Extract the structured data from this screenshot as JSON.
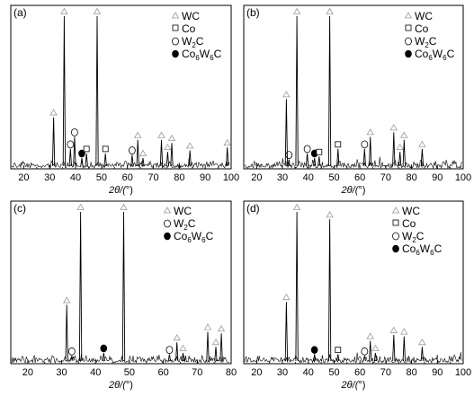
{
  "legend_symbols": {
    "WC": "triangle-icon",
    "Co": "square-icon",
    "W2C": "open-circle-icon",
    "Co6W6C": "filled-circle-icon"
  },
  "chart_data": [
    {
      "type": "line",
      "panel_label": "(a)",
      "xlabel": {
        "main": "2θ/(",
        "unit": "°",
        "end": ")"
      },
      "xticks": [
        20,
        30,
        40,
        50,
        60,
        70,
        80,
        90,
        100
      ],
      "xlim": [
        15,
        100
      ],
      "grid": false,
      "legend": [
        {
          "label": "WC",
          "symbol": "triangle"
        },
        {
          "label": "Co",
          "symbol": "square"
        },
        {
          "label": "W",
          "sub": "2",
          "label_end": "C",
          "symbol": "open-circle"
        },
        {
          "label": "Co",
          "sub": "6",
          "label_mid": "W",
          "sub2": "6",
          "label_end": "C",
          "symbol": "filled-circle"
        }
      ],
      "legend_position": "top-right",
      "peaks": [
        {
          "x": 31.5,
          "h": 0.33,
          "phase": "WC"
        },
        {
          "x": 35.6,
          "h": 1.0,
          "phase": "WC"
        },
        {
          "x": 38.0,
          "h": 0.12,
          "phase": "W2C"
        },
        {
          "x": 39.6,
          "h": 0.2,
          "phase": "W2C"
        },
        {
          "x": 42.4,
          "h": 0.06,
          "phase": "Co6W6C"
        },
        {
          "x": 44.2,
          "h": 0.09,
          "phase": "Co"
        },
        {
          "x": 48.3,
          "h": 1.0,
          "phase": "WC"
        },
        {
          "x": 51.5,
          "h": 0.09,
          "phase": "Co"
        },
        {
          "x": 61.8,
          "h": 0.08,
          "phase": "W2C"
        },
        {
          "x": 64.0,
          "h": 0.18,
          "phase": "WC"
        },
        {
          "x": 66.0,
          "h": 0.06,
          "phase": "WC"
        },
        {
          "x": 73.1,
          "h": 0.18,
          "phase": "WC"
        },
        {
          "x": 75.5,
          "h": 0.1,
          "phase": "WC"
        },
        {
          "x": 77.1,
          "h": 0.16,
          "phase": "WC"
        },
        {
          "x": 84.1,
          "h": 0.11,
          "phase": "WC"
        },
        {
          "x": 98.5,
          "h": 0.13,
          "phase": "WC"
        }
      ]
    },
    {
      "type": "line",
      "panel_label": "(b)",
      "xlabel": {
        "main": "2θ/(",
        "unit": "°",
        "end": ")"
      },
      "xticks": [
        20,
        30,
        40,
        50,
        60,
        70,
        80,
        90,
        100
      ],
      "xlim": [
        15,
        100
      ],
      "grid": false,
      "legend": [
        {
          "label": "WC",
          "symbol": "triangle"
        },
        {
          "label": "Co",
          "symbol": "square"
        },
        {
          "label": "W",
          "sub": "2",
          "label_end": "C",
          "symbol": "open-circle"
        },
        {
          "label": "Co",
          "sub": "6",
          "label_mid": "W",
          "sub2": "6",
          "label_end": "C",
          "symbol": "filled-circle"
        }
      ],
      "legend_position": "top-right",
      "peaks": [
        {
          "x": 31.5,
          "h": 0.45,
          "phase": "WC"
        },
        {
          "x": 32.5,
          "h": 0.05,
          "phase": "W2C"
        },
        {
          "x": 35.6,
          "h": 1.0,
          "phase": "WC"
        },
        {
          "x": 39.6,
          "h": 0.09,
          "phase": "W2C"
        },
        {
          "x": 42.4,
          "h": 0.06,
          "phase": "Co6W6C"
        },
        {
          "x": 44.2,
          "h": 0.07,
          "phase": "Co"
        },
        {
          "x": 48.3,
          "h": 1.0,
          "phase": "WC"
        },
        {
          "x": 51.5,
          "h": 0.12,
          "phase": "Co"
        },
        {
          "x": 61.8,
          "h": 0.12,
          "phase": "W2C"
        },
        {
          "x": 64.0,
          "h": 0.2,
          "phase": "WC"
        },
        {
          "x": 73.1,
          "h": 0.23,
          "phase": "WC"
        },
        {
          "x": 75.5,
          "h": 0.1,
          "phase": "WC"
        },
        {
          "x": 77.1,
          "h": 0.18,
          "phase": "WC"
        },
        {
          "x": 84.1,
          "h": 0.12,
          "phase": "WC"
        }
      ]
    },
    {
      "type": "line",
      "panel_label": "(c)",
      "xlabel": {
        "main": "2θ/(",
        "unit": "°",
        "end": ")"
      },
      "xticks": [
        20,
        30,
        40,
        50,
        60,
        70,
        80
      ],
      "xlim": [
        15,
        80
      ],
      "grid": false,
      "legend": [
        {
          "label": "WC",
          "symbol": "triangle"
        },
        {
          "label": "W",
          "sub": "2",
          "label_end": "C",
          "symbol": "open-circle"
        },
        {
          "label": "Co",
          "sub": "6",
          "label_mid": "W",
          "sub2": "6",
          "label_end": "C",
          "symbol": "filled-circle"
        }
      ],
      "legend_position": "top-right",
      "peaks": [
        {
          "x": 31.5,
          "h": 0.38,
          "phase": "WC"
        },
        {
          "x": 33.0,
          "h": 0.04,
          "phase": "W2C"
        },
        {
          "x": 35.6,
          "h": 1.0,
          "phase": "WC"
        },
        {
          "x": 42.4,
          "h": 0.06,
          "phase": "Co6W6C"
        },
        {
          "x": 48.3,
          "h": 1.0,
          "phase": "WC"
        },
        {
          "x": 61.8,
          "h": 0.05,
          "phase": "W2C"
        },
        {
          "x": 64.0,
          "h": 0.13,
          "phase": "WC"
        },
        {
          "x": 65.8,
          "h": 0.06,
          "phase": "WC"
        },
        {
          "x": 73.1,
          "h": 0.2,
          "phase": "WC"
        },
        {
          "x": 75.5,
          "h": 0.1,
          "phase": "WC"
        },
        {
          "x": 77.1,
          "h": 0.19,
          "phase": "WC"
        }
      ]
    },
    {
      "type": "line",
      "panel_label": "(d)",
      "xlabel": {
        "main": "2θ/(",
        "unit": "°",
        "end": ")"
      },
      "xticks": [
        20,
        30,
        40,
        50,
        60,
        70,
        80,
        90,
        100
      ],
      "xlim": [
        15,
        100
      ],
      "grid": false,
      "legend": [
        {
          "label": "WC",
          "symbol": "triangle"
        },
        {
          "label": "Co",
          "symbol": "square"
        },
        {
          "label": "W",
          "sub": "2",
          "label_end": "C",
          "symbol": "open-circle"
        },
        {
          "label": "Co",
          "sub": "6",
          "label_mid": "W",
          "sub2": "6",
          "label_end": "C",
          "symbol": "filled-circle"
        }
      ],
      "legend_position": "top-right",
      "peaks": [
        {
          "x": 31.5,
          "h": 0.4,
          "phase": "WC"
        },
        {
          "x": 35.6,
          "h": 1.0,
          "phase": "WC"
        },
        {
          "x": 42.4,
          "h": 0.05,
          "phase": "Co6W6C"
        },
        {
          "x": 48.3,
          "h": 0.95,
          "phase": "WC"
        },
        {
          "x": 51.5,
          "h": 0.05,
          "phase": "Co"
        },
        {
          "x": 61.8,
          "h": 0.04,
          "phase": "W2C"
        },
        {
          "x": 64.0,
          "h": 0.14,
          "phase": "WC"
        },
        {
          "x": 66.0,
          "h": 0.06,
          "phase": "WC"
        },
        {
          "x": 73.1,
          "h": 0.18,
          "phase": "WC"
        },
        {
          "x": 77.1,
          "h": 0.17,
          "phase": "WC"
        },
        {
          "x": 84.1,
          "h": 0.1,
          "phase": "WC"
        }
      ]
    }
  ]
}
